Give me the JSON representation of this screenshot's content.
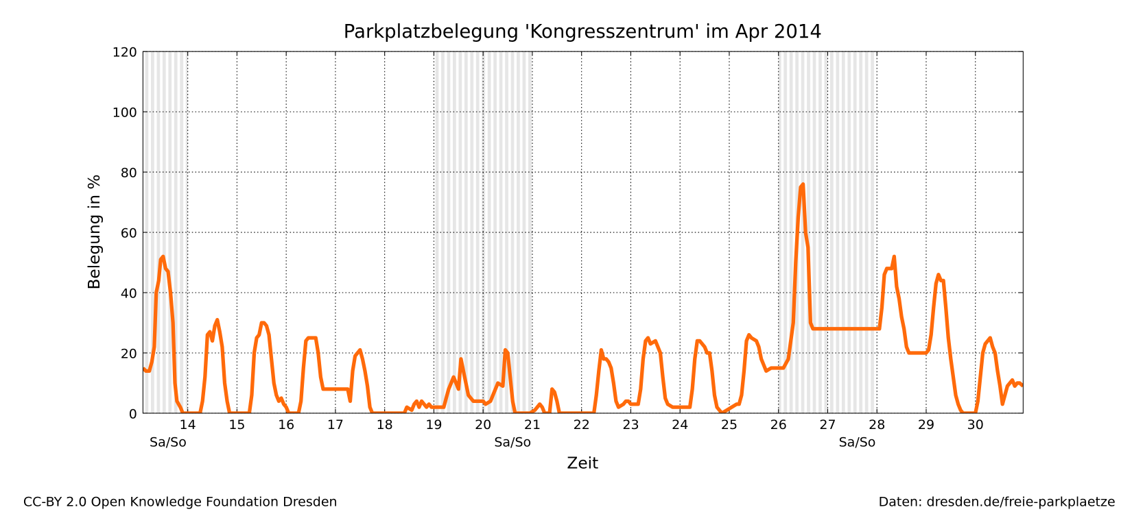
{
  "chart_data": {
    "type": "line",
    "title": "Parkplatzbelegung 'Kongresszentrum' im Apr 2014",
    "xlabel": "Zeit",
    "ylabel": "Belegung in %",
    "color": "#ff6a0a",
    "grid": true,
    "xlim": [
      13.09,
      30.97
    ],
    "xticks": [
      14,
      15,
      16,
      17,
      18,
      19,
      20,
      21,
      22,
      23,
      24,
      25,
      26,
      27,
      28,
      29,
      30
    ],
    "ylim": [
      0,
      120
    ],
    "yticks": [
      0,
      20,
      40,
      60,
      80,
      100,
      120
    ],
    "weekends": [
      {
        "start": 12,
        "end": 14,
        "label": "Sa/So"
      },
      {
        "start": 19,
        "end": 21,
        "label": "Sa/So"
      },
      {
        "start": 26,
        "end": 28,
        "label": "Sa/So"
      }
    ],
    "x": [
      13.09,
      13.15,
      13.22,
      13.27,
      13.32,
      13.36,
      13.41,
      13.45,
      13.5,
      13.55,
      13.6,
      13.65,
      13.7,
      13.74,
      13.78,
      13.85,
      13.9,
      14.25,
      14.3,
      14.35,
      14.4,
      14.45,
      14.5,
      14.55,
      14.6,
      14.65,
      14.7,
      14.75,
      14.8,
      14.85,
      15.25,
      15.3,
      15.35,
      15.4,
      15.45,
      15.5,
      15.55,
      15.6,
      15.65,
      15.7,
      15.75,
      15.8,
      15.85,
      15.9,
      15.95,
      16.0,
      16.05,
      16.25,
      16.3,
      16.35,
      16.4,
      16.45,
      16.5,
      16.55,
      16.6,
      16.65,
      16.7,
      16.75,
      17.25,
      17.3,
      17.35,
      17.4,
      17.45,
      17.5,
      17.55,
      17.6,
      17.65,
      17.7,
      17.75,
      18.4,
      18.45,
      18.55,
      18.6,
      18.65,
      18.7,
      18.75,
      18.8,
      18.85,
      18.9,
      18.95,
      19.2,
      19.3,
      19.35,
      19.4,
      19.45,
      19.5,
      19.55,
      19.6,
      19.65,
      19.7,
      19.75,
      19.8,
      20.0,
      20.05,
      20.15,
      20.25,
      20.3,
      20.4,
      20.45,
      20.5,
      20.55,
      20.6,
      20.65,
      20.95,
      21.05,
      21.15,
      21.2,
      21.25,
      21.35,
      21.4,
      21.45,
      21.5,
      21.55,
      22.25,
      22.3,
      22.35,
      22.4,
      22.45,
      22.5,
      22.55,
      22.6,
      22.65,
      22.7,
      22.75,
      22.85,
      22.9,
      22.95,
      23.0,
      23.15,
      23.2,
      23.25,
      23.3,
      23.35,
      23.4,
      23.5,
      23.55,
      23.6,
      23.65,
      23.7,
      23.75,
      23.85,
      24.2,
      24.25,
      24.3,
      24.35,
      24.4,
      24.5,
      24.55,
      24.6,
      24.65,
      24.7,
      24.75,
      24.85,
      24.95,
      25.05,
      25.15,
      25.2,
      25.25,
      25.3,
      25.35,
      25.4,
      25.45,
      25.55,
      25.6,
      25.65,
      25.7,
      25.75,
      25.85,
      26.0,
      26.1,
      26.2,
      26.3,
      26.35,
      26.4,
      26.45,
      26.5,
      26.55,
      26.6,
      26.65,
      26.7,
      27.0,
      27.5,
      27.95,
      28.05,
      28.1,
      28.15,
      28.2,
      28.3,
      28.35,
      28.4,
      28.45,
      28.5,
      28.55,
      28.6,
      28.65,
      28.75,
      29.0,
      29.05,
      29.1,
      29.15,
      29.2,
      29.25,
      29.3,
      29.35,
      29.4,
      29.45,
      29.5,
      29.55,
      29.6,
      29.65,
      29.7,
      29.75,
      30.0,
      30.05,
      30.1,
      30.15,
      30.2,
      30.3,
      30.35,
      30.4,
      30.45,
      30.5,
      30.55,
      30.6,
      30.65,
      30.7,
      30.75,
      30.8,
      30.85,
      30.9,
      30.97
    ],
    "values": [
      15,
      14,
      14,
      17,
      22,
      40,
      44,
      51,
      52,
      48,
      47,
      40,
      30,
      10,
      4,
      2,
      0,
      0,
      4,
      12,
      26,
      27,
      24,
      29,
      31,
      27,
      22,
      10,
      4,
      0,
      0,
      6,
      20,
      25,
      26,
      30,
      30,
      29,
      26,
      18,
      10,
      6,
      4,
      5,
      3,
      2,
      0,
      0,
      4,
      15,
      24,
      25,
      25,
      25,
      25,
      20,
      12,
      8,
      8,
      4,
      14,
      19,
      20,
      21,
      18,
      14,
      9,
      2,
      0,
      0,
      2,
      1,
      3,
      4,
      2,
      4,
      3,
      2,
      3,
      2,
      2,
      8,
      10,
      12,
      10,
      8,
      18,
      14,
      10,
      6,
      5,
      4,
      4,
      3,
      4,
      8,
      10,
      9,
      21,
      20,
      12,
      4,
      0,
      0,
      1,
      3,
      2,
      0,
      0,
      8,
      7,
      4,
      0,
      0,
      6,
      14,
      21,
      18,
      18,
      17,
      15,
      10,
      4,
      2,
      3,
      4,
      4,
      3,
      3,
      8,
      18,
      24,
      25,
      23,
      24,
      22,
      20,
      12,
      5,
      3,
      2,
      2,
      8,
      18,
      24,
      24,
      22,
      20,
      20,
      14,
      6,
      2,
      0,
      1,
      2,
      3,
      3,
      6,
      14,
      24,
      26,
      25,
      24,
      22,
      18,
      16,
      14,
      15,
      15,
      15,
      18,
      30,
      50,
      65,
      75,
      76,
      60,
      55,
      30,
      28,
      28,
      28,
      28,
      28,
      35,
      46,
      48,
      48,
      52,
      42,
      38,
      32,
      28,
      22,
      20,
      20,
      20,
      21,
      26,
      35,
      43,
      46,
      44,
      44,
      35,
      25,
      18,
      12,
      6,
      3,
      1,
      0,
      0,
      4,
      12,
      20,
      23,
      25,
      22,
      20,
      14,
      9,
      3,
      6,
      9,
      10,
      11,
      9,
      10,
      10,
      9
    ]
  },
  "footer": {
    "license": "CC-BY 2.0 Open Knowledge Foundation Dresden",
    "source": "Daten: dresden.de/freie-parkplaetze"
  }
}
